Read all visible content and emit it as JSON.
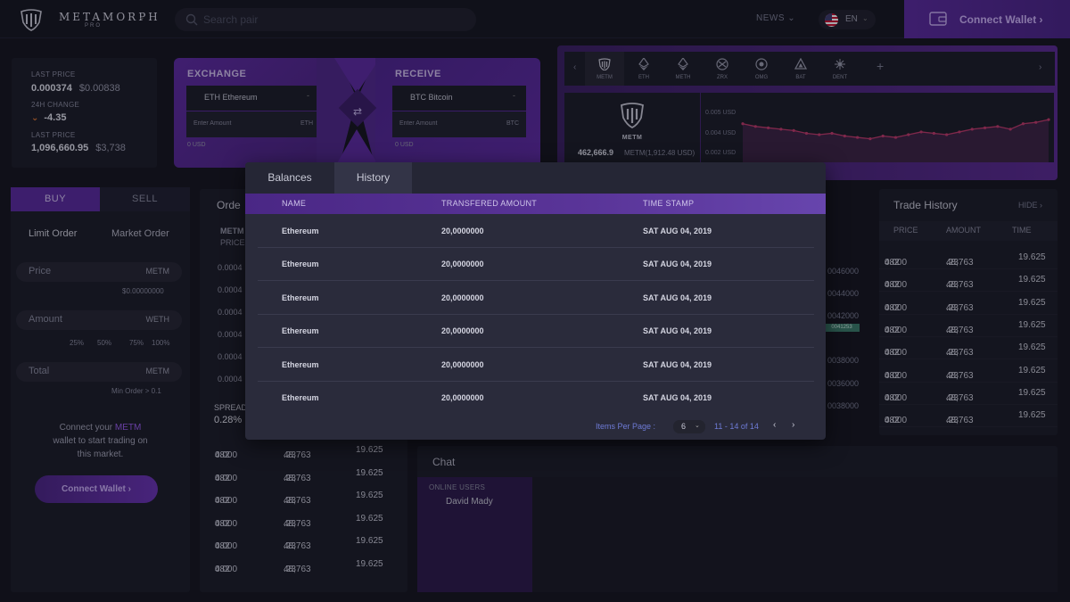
{
  "header": {
    "brand": "METAMORPH",
    "brand_sub": "PRO",
    "search_placeholder": "Search pair",
    "news_label": "NEWS",
    "lang": "EN",
    "connect_wallet": "Connect Wallet ›"
  },
  "price_card": {
    "last_price_label": "LAST PRICE",
    "last_price": "0.000374",
    "last_price_usd": "$0.00838",
    "change_label": "24H CHANGE",
    "change": "-4.35",
    "last_price2_label": "LAST PRICE",
    "last_price2": "1,096,660.95",
    "last_price2_usd": "$3,738"
  },
  "exchange": {
    "exchange_title": "EXCHANGE",
    "receive_title": "RECEIVE",
    "from_coin": "ETH Ethereum",
    "to_coin": "BTC Bitcoin",
    "amount_placeholder": "Enter Amount",
    "from_unit": "ETH",
    "to_unit": "BTC",
    "from_usd": "0 USD",
    "to_usd": "0 USD",
    "dash": "-"
  },
  "coins": [
    {
      "symbol": "METM",
      "icon": "shield-icon"
    },
    {
      "symbol": "ETH",
      "icon": "eth-icon"
    },
    {
      "symbol": "METH",
      "icon": "eth-icon"
    },
    {
      "symbol": "ZRX",
      "icon": "zrx-icon"
    },
    {
      "symbol": "OMG",
      "icon": "omg-icon"
    },
    {
      "symbol": "BAT",
      "icon": "bat-icon"
    },
    {
      "symbol": "DENT",
      "icon": "dent-icon"
    }
  ],
  "coin_card": {
    "name": "METM",
    "value": "462,666.9",
    "sub": "METM(1,912.48 USD)"
  },
  "mini_chart": {
    "y_labels": [
      "0.005 USD",
      "0.004 USD",
      "0.002 USD"
    ],
    "values": [
      0.0043,
      0.0041,
      0.004,
      0.0039,
      0.0038,
      0.0036,
      0.0035,
      0.0036,
      0.0034,
      0.0033,
      0.0032,
      0.0034,
      0.0033,
      0.0035,
      0.0037,
      0.0036,
      0.0035,
      0.0037,
      0.0039,
      0.004,
      0.0041,
      0.0039,
      0.0043,
      0.0044,
      0.0046
    ],
    "line_color": "#c0396b"
  },
  "trade_form": {
    "buy": "BUY",
    "sell": "SELL",
    "limit": "Limit Order",
    "market": "Market Order",
    "price_label": "Price",
    "price_unit": "METM",
    "price_value": "$0.00000000",
    "amount_label": "Amount",
    "amount_unit": "WETH",
    "percents": [
      "25%",
      "50%",
      "75%",
      "100%"
    ],
    "total_label": "Total",
    "total_unit": "METM",
    "min_order": "Min Order > 0.1",
    "connect_line1_a": "Connect your ",
    "connect_line1_b": "METM",
    "connect_line2": "wallet to start trading on",
    "connect_line3": "this market.",
    "connect_button": "Connect Wallet ›"
  },
  "order_book": {
    "title": "Orde",
    "col1": "METM",
    "col2": "PRICE",
    "left_cells": [
      "0.0004",
      "0.0004",
      "0.0004",
      "0.0004",
      "0.0004",
      "0.0004"
    ],
    "spread_label": "SPREAD",
    "spread_value": "0.28%",
    "rows": [
      {
        "p1": "0.000",
        "p2": "482",
        "a1": "48,763",
        "a2": ".23",
        "t": "19.625"
      },
      {
        "p1": "0.000",
        "p2": "482",
        "a1": "48,763",
        "a2": ".23",
        "t": "19.625"
      },
      {
        "p1": "0.000",
        "p2": "482",
        "a1": "48,763",
        "a2": ".23",
        "t": "19.625"
      },
      {
        "p1": "0.000",
        "p2": "482",
        "a1": "48,763",
        "a2": ".23",
        "t": "19.625"
      },
      {
        "p1": "0.000",
        "p2": "482",
        "a1": "48,763",
        "a2": ".23",
        "t": "19.625"
      },
      {
        "p1": "0.000",
        "p2": "482",
        "a1": "48,763",
        "a2": ".23",
        "t": "19.625"
      }
    ]
  },
  "center_book": {
    "values": [
      "0046000",
      "0044000",
      "0042000",
      "0038000",
      "0036000",
      "0038000"
    ],
    "badge": "0041253"
  },
  "trade_history": {
    "title": "Trade History",
    "hide": "HIDE ›",
    "headers": [
      "PRICE",
      "AMOUNT",
      "TIME"
    ],
    "rows": [
      {
        "p1": "0.000",
        "p2": "482",
        "a1": "48,763",
        "a2": ".23",
        "t": "19.625",
        "side": "green"
      },
      {
        "p1": "0.000",
        "p2": "482",
        "a1": "48,763",
        "a2": ".23",
        "t": "19.625",
        "side": "red"
      },
      {
        "p1": "0.000",
        "p2": "482",
        "a1": "48,763",
        "a2": ".23",
        "t": "19.625",
        "side": "green"
      },
      {
        "p1": "0.000",
        "p2": "482",
        "a1": "48,763",
        "a2": ".23",
        "t": "19.625",
        "side": "red"
      },
      {
        "p1": "0.000",
        "p2": "482",
        "a1": "48,763",
        "a2": ".23",
        "t": "19.625",
        "side": "red"
      },
      {
        "p1": "0.000",
        "p2": "482",
        "a1": "48,763",
        "a2": ".23",
        "t": "19.625",
        "side": "green"
      },
      {
        "p1": "0.000",
        "p2": "482",
        "a1": "48,763",
        "a2": ".23",
        "t": "19.625",
        "side": "green"
      },
      {
        "p1": "0.000",
        "p2": "482",
        "a1": "48,763",
        "a2": ".23",
        "t": "19.625",
        "side": "red"
      }
    ]
  },
  "chat": {
    "title": "Chat",
    "online_label": "ONLINE USERS",
    "users": [
      "David Mady"
    ]
  },
  "modal": {
    "tabs": [
      "Balances",
      "History"
    ],
    "active_tab": "History",
    "headers": [
      "NAME",
      "TRANSFERED AMOUNT",
      "TIME STAMP"
    ],
    "rows": [
      {
        "name": "Ethereum",
        "amount": "20,0000000",
        "time": "SAT AUG 04, 2019"
      },
      {
        "name": "Ethereum",
        "amount": "20,0000000",
        "time": "SAT AUG 04, 2019"
      },
      {
        "name": "Ethereum",
        "amount": "20,0000000",
        "time": "SAT AUG 04, 2019"
      },
      {
        "name": "Ethereum",
        "amount": "20,0000000",
        "time": "SAT AUG 04, 2019"
      },
      {
        "name": "Ethereum",
        "amount": "20,0000000",
        "time": "SAT AUG 04, 2019"
      },
      {
        "name": "Ethereum",
        "amount": "20,0000000",
        "time": "SAT AUG 04, 2019"
      }
    ],
    "items_per_page_label": "Items Per Page :",
    "items_per_page": "6",
    "range": "11 - 14 of 14",
    "prev": "‹",
    "next": "›"
  },
  "colors": {
    "accent": "#5a2a9e",
    "green": "#4caf7d",
    "red": "#e0463c"
  }
}
